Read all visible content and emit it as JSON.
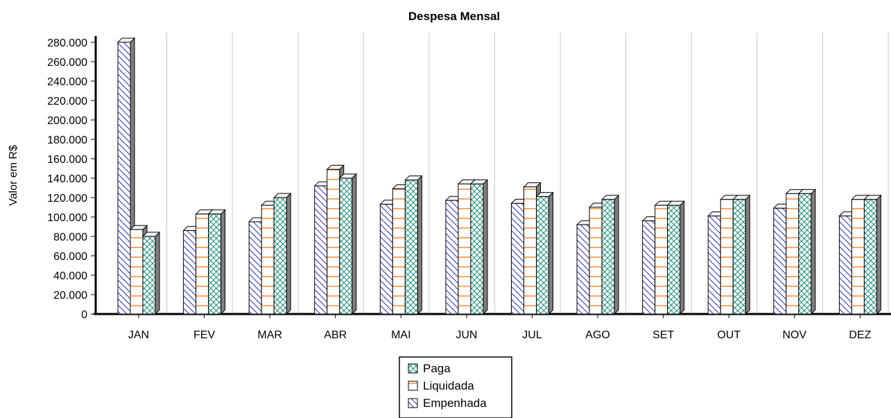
{
  "chart_data": {
    "type": "bar",
    "title": "Despesa Mensal",
    "xlabel": "",
    "ylabel": "Valor em R$",
    "ylim": [
      0,
      280000
    ],
    "ytick_step": 20000,
    "yticks": [
      "0",
      "20.000",
      "40.000",
      "60.000",
      "80.000",
      "100.000",
      "120.000",
      "140.000",
      "160.000",
      "180.000",
      "200.000",
      "220.000",
      "240.000",
      "260.000",
      "280.000"
    ],
    "categories": [
      "JAN",
      "FEV",
      "MAR",
      "ABR",
      "MAI",
      "JUN",
      "JUL",
      "AGO",
      "SET",
      "OUT",
      "NOV",
      "DEZ"
    ],
    "series": [
      {
        "name": "Empenhada",
        "color": "#2c2cb0",
        "pattern": "diagonal",
        "values": [
          280000,
          86000,
          95000,
          132000,
          113000,
          117000,
          114000,
          92000,
          96000,
          101000,
          109000,
          101000
        ]
      },
      {
        "name": "Liquidada",
        "color": "#ff6a00",
        "pattern": "horizontal",
        "values": [
          87000,
          103000,
          112000,
          149000,
          129000,
          134000,
          131000,
          110000,
          112000,
          118000,
          124000,
          118000
        ]
      },
      {
        "name": "Paga",
        "color": "#1a8a7a",
        "pattern": "crosshatch",
        "values": [
          80000,
          103000,
          120000,
          140000,
          138000,
          134000,
          121000,
          118000,
          112000,
          118000,
          124000,
          118000
        ]
      }
    ],
    "legend": {
      "placement": "bottom-center",
      "entries": [
        "Paga",
        "Liquidada",
        "Empenhada"
      ]
    },
    "grid": {
      "vertical": true,
      "horizontal": false
    },
    "style": "3d"
  }
}
